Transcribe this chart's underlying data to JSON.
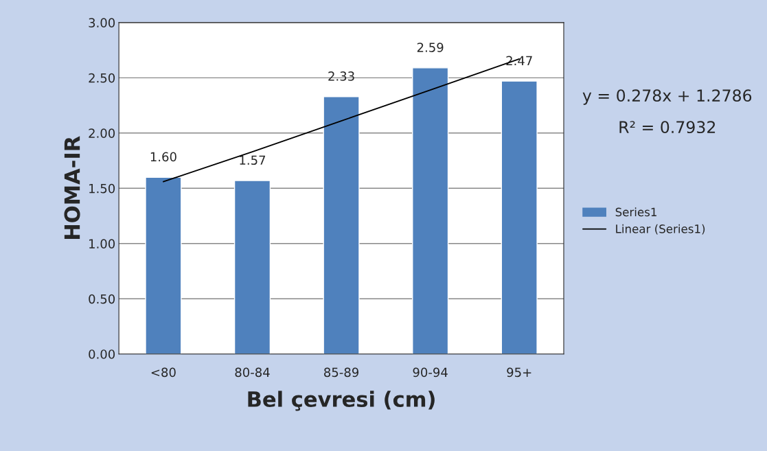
{
  "chart_data": {
    "type": "bar",
    "xlabel": "Bel çevresi (cm)",
    "ylabel": "HOMA-IR",
    "categories": [
      "<80",
      "80-84",
      "85-89",
      "90-94",
      "95+"
    ],
    "series": [
      {
        "name": "Series1",
        "color": "#4f81bd",
        "values": [
          1.6,
          1.57,
          2.33,
          2.59,
          2.47
        ],
        "value_labels": [
          "1.60",
          "1.57",
          "2.33",
          "2.59",
          "2.47"
        ]
      },
      {
        "name": "Linear (Series1)",
        "type": "line",
        "color": "#000000",
        "values": [
          1.56,
          1.83,
          2.11,
          2.39,
          2.67
        ]
      }
    ],
    "ylim": [
      0,
      3
    ],
    "yticks": [
      {
        "value": 0,
        "label": "0.00"
      },
      {
        "value": 0.5,
        "label": "0.50"
      },
      {
        "value": 1,
        "label": "1.00"
      },
      {
        "value": 1.5,
        "label": "1.50"
      },
      {
        "value": 2,
        "label": "2.00"
      },
      {
        "value": 2.5,
        "label": "2.50"
      },
      {
        "value": 3,
        "label": "3.00"
      }
    ],
    "grid": "y",
    "legend": "right",
    "annotations": [
      "y = 0.278x + 1.2786",
      "R² = 0.7932"
    ]
  }
}
